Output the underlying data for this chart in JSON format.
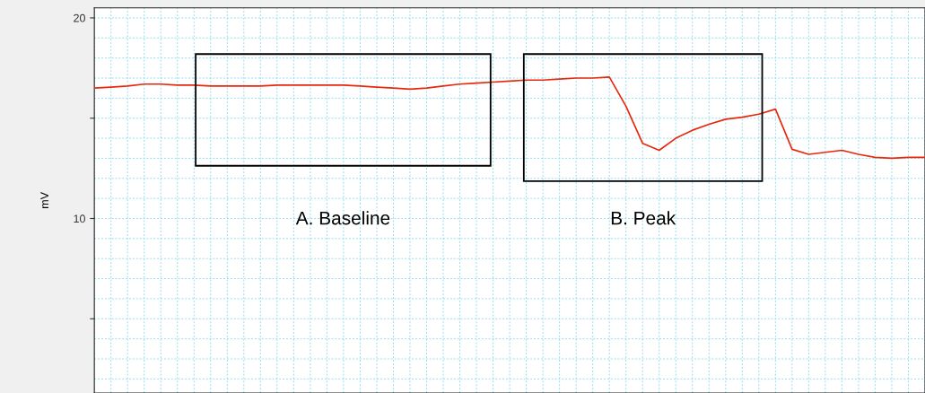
{
  "chart_data": {
    "type": "line",
    "ylabel": "mV",
    "categories": [
      null,
      null,
      null,
      null,
      null,
      null,
      null,
      null,
      null,
      null,
      null,
      null,
      null,
      null,
      null,
      null,
      null,
      null,
      null,
      null,
      null,
      null,
      null,
      null,
      null,
      null,
      null,
      null,
      null,
      null,
      null,
      null,
      null,
      null,
      null,
      null,
      null,
      null,
      null,
      null,
      null,
      null,
      null,
      null,
      null,
      null,
      null,
      null,
      null,
      null,
      null
    ],
    "series": [
      {
        "color": "#e8280c",
        "values": [
          16.5,
          16.55,
          16.6,
          16.7,
          16.7,
          16.65,
          16.65,
          16.6,
          16.6,
          16.6,
          16.6,
          16.65,
          16.65,
          16.65,
          16.65,
          16.65,
          16.6,
          16.55,
          16.5,
          16.45,
          16.5,
          16.6,
          16.7,
          16.75,
          16.8,
          16.85,
          16.9,
          16.9,
          16.95,
          17.0,
          17.0,
          17.05,
          15.6,
          13.75,
          13.4,
          14.0,
          14.4,
          14.7,
          14.95,
          15.05,
          15.2,
          15.45,
          13.45,
          13.2,
          13.3,
          13.4,
          13.2,
          13.05,
          13.0,
          13.05,
          13.05
        ]
      }
    ],
    "ylim": [
      1.3,
      20.5
    ],
    "yticks": [
      {
        "value": 5,
        "label": null
      },
      10,
      {
        "value": 15,
        "label": null
      },
      20
    ],
    "tick_labels": "y",
    "grid": true,
    "marker": "none",
    "line_style": "solid",
    "annotations": [
      "A. Baseline",
      "B. Peak"
    ]
  }
}
